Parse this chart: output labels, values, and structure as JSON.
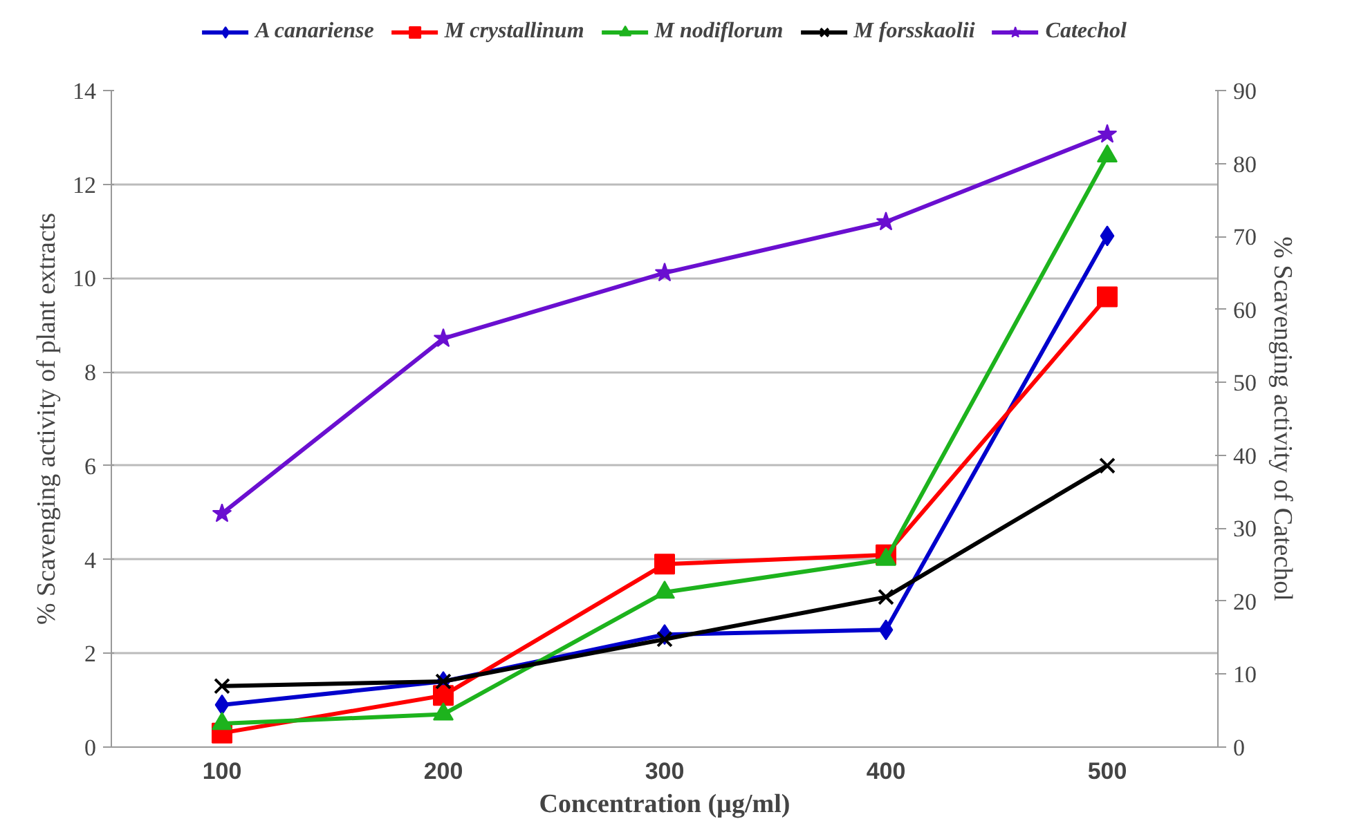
{
  "chart_data": {
    "type": "line",
    "xlabel": "Concentration (µg/ml)",
    "ylabel": "% Scavenging activity of plant extracts",
    "y2label": "% Scavenging activity of Catechol",
    "categories": [
      "100",
      "200",
      "300",
      "400",
      "500"
    ],
    "ylim": [
      0,
      14
    ],
    "yticks": [
      0,
      2,
      4,
      6,
      8,
      10,
      12,
      14
    ],
    "y2lim": [
      0,
      90
    ],
    "y2ticks": [
      0,
      10,
      20,
      30,
      40,
      50,
      60,
      70,
      80,
      90
    ],
    "grid": "y",
    "legend": "top",
    "series": [
      {
        "name": "A canariense",
        "color": "#0000cc",
        "marker": "diamond",
        "values": [
          0.9,
          1.4,
          2.4,
          2.5,
          10.9
        ]
      },
      {
        "name": "M crystallinum",
        "color": "#ff0000",
        "marker": "square",
        "values": [
          0.3,
          1.1,
          3.9,
          4.1,
          9.6
        ]
      },
      {
        "name": "M nodiflorum",
        "color": "#1db31d",
        "marker": "triangle",
        "values": [
          0.5,
          0.7,
          3.3,
          4.0,
          12.6
        ]
      },
      {
        "name": "M forsskaolii",
        "color": "#000000",
        "marker": "cross",
        "values": [
          1.3,
          1.4,
          2.3,
          3.2,
          6.0
        ]
      },
      {
        "name": "Catechol",
        "color": "#6a0fd0",
        "marker": "star",
        "axis": "y2",
        "values": [
          32,
          56,
          65,
          72,
          84
        ]
      }
    ]
  }
}
